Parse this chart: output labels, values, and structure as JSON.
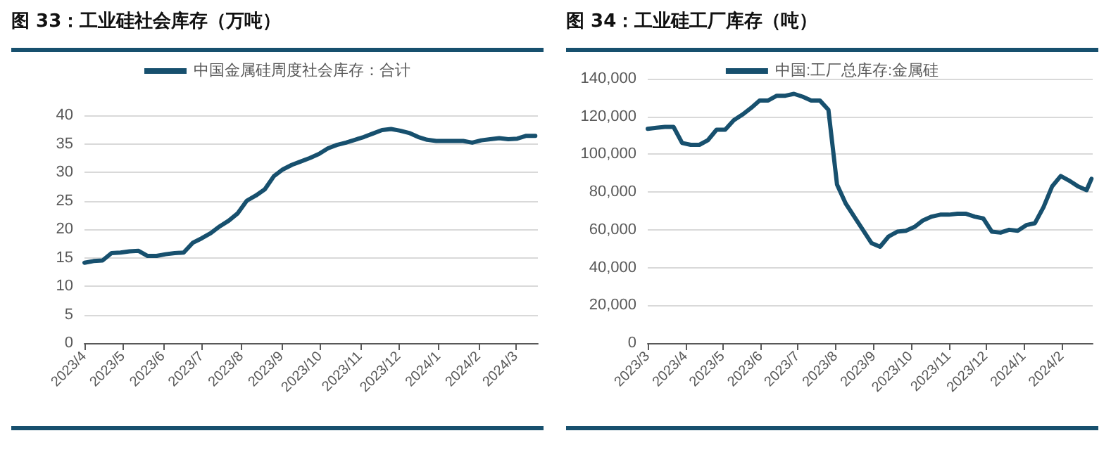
{
  "chart_data": [
    {
      "type": "line",
      "title": "图 33：工业硅社会库存（万吨）",
      "legend": "top",
      "grid": "y",
      "marker": "none",
      "line_style": "solid",
      "x": [
        "2023-04-01",
        "2023-04-08",
        "2023-04-15",
        "2023-04-22",
        "2023-04-29",
        "2023-05-06",
        "2023-05-13",
        "2023-05-20",
        "2023-05-27",
        "2023-06-03",
        "2023-06-10",
        "2023-06-17",
        "2023-06-24",
        "2023-07-01",
        "2023-07-08",
        "2023-07-15",
        "2023-07-22",
        "2023-07-29",
        "2023-08-05",
        "2023-08-12",
        "2023-08-19",
        "2023-08-26",
        "2023-09-02",
        "2023-09-09",
        "2023-09-16",
        "2023-09-23",
        "2023-09-30",
        "2023-10-07",
        "2023-10-14",
        "2023-10-21",
        "2023-10-28",
        "2023-11-04",
        "2023-11-11",
        "2023-11-18",
        "2023-11-25",
        "2023-12-02",
        "2023-12-09",
        "2023-12-16",
        "2023-12-23",
        "2023-12-30",
        "2024-01-06",
        "2024-01-13",
        "2024-01-20",
        "2024-01-27",
        "2024-02-03",
        "2024-02-10",
        "2024-02-17",
        "2024-02-24",
        "2024-03-02",
        "2024-03-09",
        "2024-03-16"
      ],
      "series": [
        {
          "name": "中国金属硅周度社会库存：合计",
          "color": "#17506e",
          "values": [
            14.1,
            14.4,
            14.5,
            15.8,
            15.9,
            16.1,
            16.2,
            15.3,
            15.3,
            15.6,
            15.8,
            15.9,
            17.6,
            18.4,
            19.3,
            20.5,
            21.5,
            22.8,
            25.0,
            25.9,
            27.0,
            29.3,
            30.5,
            31.3,
            31.9,
            32.5,
            33.2,
            34.2,
            34.8,
            35.2,
            35.7,
            36.2,
            36.8,
            37.4,
            37.6,
            37.3,
            36.9,
            36.2,
            35.7,
            35.5,
            35.5,
            35.5,
            35.5,
            35.2,
            35.6,
            35.8,
            36.0,
            35.8,
            35.9,
            36.4,
            36.4
          ]
        }
      ],
      "xlim": [
        "2023-04-01",
        "2024-03-18"
      ],
      "xticks": [
        {
          "value": "2023-04-01",
          "label": "2023/4"
        },
        {
          "value": "2023-05-01",
          "label": "2023/5"
        },
        {
          "value": "2023-06-01",
          "label": "2023/6"
        },
        {
          "value": "2023-07-01",
          "label": "2023/7"
        },
        {
          "value": "2023-08-01",
          "label": "2023/8"
        },
        {
          "value": "2023-09-01",
          "label": "2023/9"
        },
        {
          "value": "2023-10-01",
          "label": "2023/10"
        },
        {
          "value": "2023-11-01",
          "label": "2023/11"
        },
        {
          "value": "2023-12-01",
          "label": "2023/12"
        },
        {
          "value": "2024-01-01",
          "label": "2024/1"
        },
        {
          "value": "2024-02-01",
          "label": "2024/2"
        },
        {
          "value": "2024-03-01",
          "label": "2024/3"
        }
      ],
      "ylim": [
        0,
        40
      ],
      "yticks": [
        0,
        5,
        10,
        15,
        20,
        25,
        30,
        35,
        40
      ]
    },
    {
      "type": "line",
      "title": "图 34：工业硅工厂库存（吨）",
      "legend": "top",
      "grid": "y",
      "marker": "none",
      "line_style": "solid",
      "x": [
        "2023-03-01",
        "2023-03-08",
        "2023-03-15",
        "2023-03-22",
        "2023-03-29",
        "2023-04-05",
        "2023-04-12",
        "2023-04-19",
        "2023-04-26",
        "2023-05-03",
        "2023-05-10",
        "2023-05-17",
        "2023-05-24",
        "2023-05-31",
        "2023-06-07",
        "2023-06-14",
        "2023-06-21",
        "2023-06-28",
        "2023-07-05",
        "2023-07-12",
        "2023-07-19",
        "2023-07-26",
        "2023-08-02",
        "2023-08-09",
        "2023-08-16",
        "2023-08-23",
        "2023-08-30",
        "2023-09-06",
        "2023-09-13",
        "2023-09-20",
        "2023-09-27",
        "2023-10-04",
        "2023-10-11",
        "2023-10-18",
        "2023-10-25",
        "2023-11-01",
        "2023-11-08",
        "2023-11-15",
        "2023-11-22",
        "2023-11-29",
        "2023-12-06",
        "2023-12-13",
        "2023-12-20",
        "2023-12-27",
        "2024-01-03",
        "2024-01-10",
        "2024-01-17",
        "2024-01-24",
        "2024-01-31",
        "2024-02-07",
        "2024-02-14",
        "2024-02-21",
        "2024-02-25"
      ],
      "series": [
        {
          "name": "中国:工厂总库存:金属硅",
          "color": "#17506e",
          "values": [
            113500,
            114000,
            114500,
            114500,
            106000,
            105000,
            105000,
            107500,
            113000,
            113000,
            118000,
            121000,
            124500,
            128500,
            128500,
            131000,
            131000,
            132000,
            130500,
            128500,
            128500,
            123500,
            84000,
            74000,
            67000,
            60000,
            53000,
            51000,
            56500,
            59000,
            59500,
            61500,
            65000,
            67000,
            68000,
            68000,
            68500,
            68500,
            67000,
            66000,
            59000,
            58500,
            60000,
            59500,
            62500,
            63500,
            72000,
            83000,
            88500,
            86000,
            83000,
            81000,
            87000
          ]
        }
      ],
      "xlim": [
        "2023-03-01",
        "2024-02-26"
      ],
      "xticks": [
        {
          "value": "2023-03-01",
          "label": "2023/3"
        },
        {
          "value": "2023-04-01",
          "label": "2023/4"
        },
        {
          "value": "2023-05-01",
          "label": "2023/5"
        },
        {
          "value": "2023-06-01",
          "label": "2023/6"
        },
        {
          "value": "2023-07-01",
          "label": "2023/7"
        },
        {
          "value": "2023-08-01",
          "label": "2023/8"
        },
        {
          "value": "2023-09-01",
          "label": "2023/9"
        },
        {
          "value": "2023-10-01",
          "label": "2023/10"
        },
        {
          "value": "2023-11-01",
          "label": "2023/11"
        },
        {
          "value": "2023-12-01",
          "label": "2023/12"
        },
        {
          "value": "2024-01-01",
          "label": "2024/1"
        },
        {
          "value": "2024-02-01",
          "label": "2024/2"
        }
      ],
      "ylim": [
        0,
        140000
      ],
      "yticks": [
        {
          "value": 0,
          "label": "0"
        },
        {
          "value": 20000,
          "label": "20,000"
        },
        {
          "value": 40000,
          "label": "40,000"
        },
        {
          "value": 60000,
          "label": "60,000"
        },
        {
          "value": 80000,
          "label": "80,000"
        },
        {
          "value": 100000,
          "label": "100,000"
        },
        {
          "value": 120000,
          "label": "120,000"
        },
        {
          "value": 140000,
          "label": "140,000"
        }
      ]
    }
  ]
}
